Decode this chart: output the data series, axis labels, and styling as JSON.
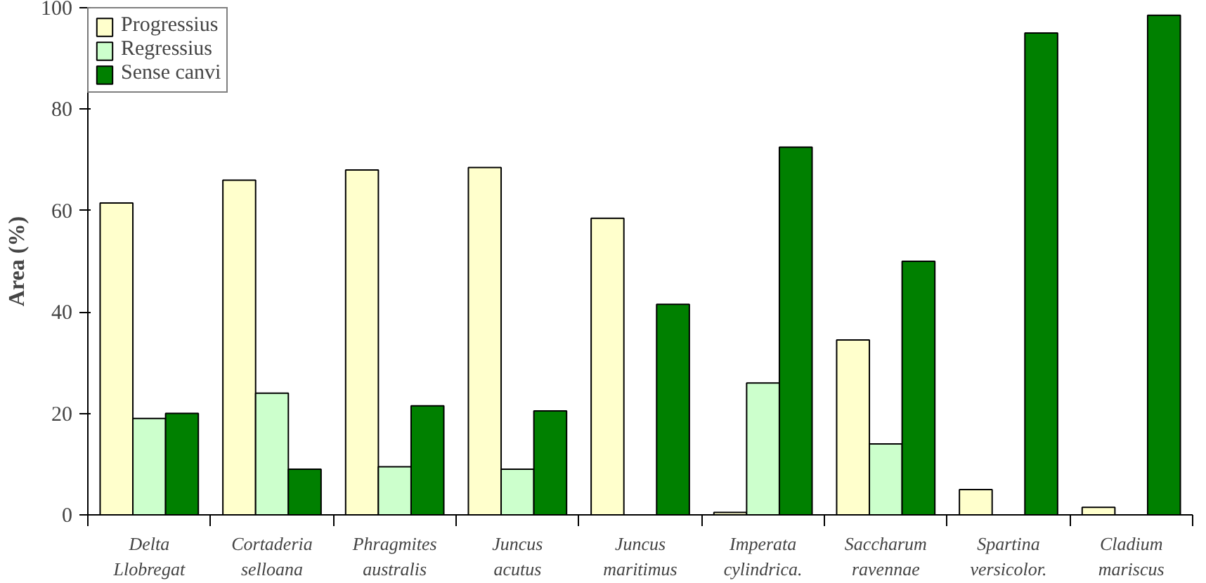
{
  "chart_data": {
    "type": "bar",
    "ylabel": "Area (%)",
    "categories": [
      "Delta\nLlobregat",
      "Cortaderia\nselloana",
      "Phragmites\naustralis",
      "Juncus\nacutus",
      "Juncus\nmaritimus",
      "Imperata\ncylindrica.",
      "Saccharum\nravennae",
      "Spartina\nversicolor.",
      "Cladium\nmariscus"
    ],
    "series": [
      {
        "name": "Progressius",
        "color": "#ffffcc",
        "values": [
          61.5,
          66,
          68,
          68.5,
          58.5,
          0.5,
          34.5,
          5,
          1.5
        ]
      },
      {
        "name": "Regressius",
        "color": "#ccffcc",
        "values": [
          19,
          24,
          9.5,
          9,
          null,
          26,
          14,
          null,
          null
        ]
      },
      {
        "name": "Sense canvi",
        "color": "#008000",
        "values": [
          20,
          9,
          21.5,
          20.5,
          41.5,
          72.5,
          50,
          95,
          98.5
        ]
      }
    ],
    "ylim": [
      0,
      100
    ],
    "yticks": [
      0,
      20,
      40,
      60,
      80,
      100
    ],
    "grid": false,
    "legend": "top left"
  }
}
